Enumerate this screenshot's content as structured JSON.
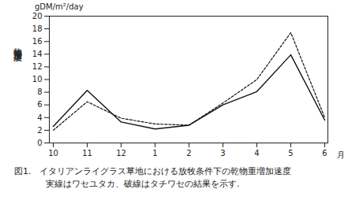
{
  "chart_data": {
    "type": "line",
    "title": "図1.　イタリアンライグラス草地における放牧条件下の乾物重増加速度",
    "subtitle": "実線はワセユタカ、破線はタチワセの結果を示す.",
    "y_label": "乾物重増加速度",
    "y_unit": "gDM/m²/day",
    "x_label": "月",
    "categories": [
      "10",
      "11",
      "12",
      "1",
      "2",
      "3",
      "4",
      "5",
      "6"
    ],
    "series": [
      {
        "name": "ワセユタカ",
        "color": "#111111",
        "line_style": "solid",
        "values": [
          2.6,
          8.3,
          3.3,
          2.2,
          2.8,
          6.0,
          8.1,
          13.9,
          3.6
        ]
      },
      {
        "name": "タチワセ",
        "color": "#111111",
        "line_style": "dashed",
        "values": [
          2.0,
          6.5,
          3.9,
          3.0,
          2.8,
          6.3,
          10.0,
          17.4,
          4.0
        ]
      }
    ],
    "ylim": [
      0,
      20
    ],
    "yticks": [
      0,
      2,
      4,
      6,
      8,
      10,
      12,
      14,
      16,
      18,
      20
    ],
    "grid": false
  }
}
